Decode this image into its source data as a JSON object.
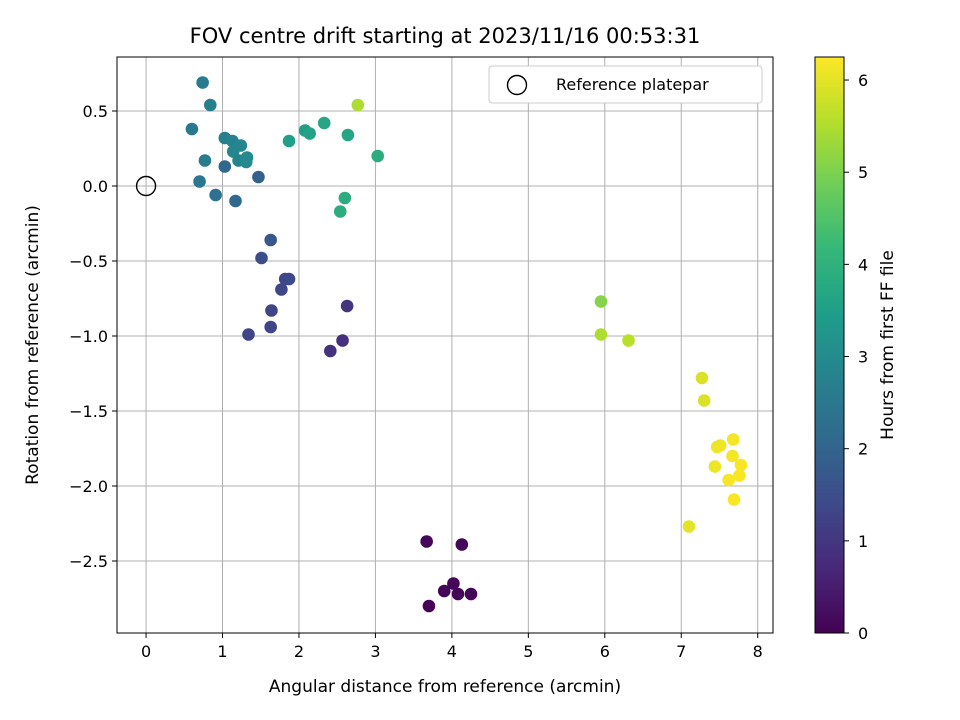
{
  "chart_data": {
    "type": "scatter",
    "title": "FOV centre drift starting at 2023/11/16 00:53:31",
    "xlabel": "Angular distance from reference (arcmin)",
    "ylabel": "Rotation from reference (arcmin)",
    "xlim": [
      -0.38,
      8.2
    ],
    "ylim": [
      -2.98,
      0.86
    ],
    "xticks": [
      0,
      1,
      2,
      3,
      4,
      5,
      6,
      7,
      8
    ],
    "yticks": [
      0.5,
      0.0,
      -0.5,
      -1.0,
      -1.5,
      -2.0,
      -2.5
    ],
    "ytick_labels": [
      "0.5",
      "0.0",
      "−0.5",
      "−1.0",
      "−1.5",
      "−2.0",
      "−2.5"
    ],
    "grid": true,
    "legend": {
      "placement": "top-right",
      "entries": [
        "Reference platepar"
      ]
    },
    "reference_point": {
      "x": 0,
      "y": 0,
      "marker": "hollow-circle"
    },
    "colorbar": {
      "label": "Hours from first FF file",
      "min": 0,
      "max": 6.25,
      "ticks": [
        0,
        1,
        2,
        3,
        4,
        5,
        6
      ],
      "colormap": "viridis"
    },
    "points": [
      {
        "x": 3.67,
        "y": -2.37,
        "c": 0.1
      },
      {
        "x": 3.7,
        "y": -2.8,
        "c": 0.05
      },
      {
        "x": 3.9,
        "y": -2.7,
        "c": 0.05
      },
      {
        "x": 4.02,
        "y": -2.65,
        "c": 0.1
      },
      {
        "x": 4.08,
        "y": -2.72,
        "c": 0.05
      },
      {
        "x": 4.13,
        "y": -2.39,
        "c": 0.1
      },
      {
        "x": 4.25,
        "y": -2.72,
        "c": 0.05
      },
      {
        "x": 2.41,
        "y": -1.1,
        "c": 0.9
      },
      {
        "x": 2.57,
        "y": -1.03,
        "c": 0.85
      },
      {
        "x": 2.63,
        "y": -0.8,
        "c": 0.95
      },
      {
        "x": 1.34,
        "y": -0.99,
        "c": 1.3
      },
      {
        "x": 1.63,
        "y": -0.94,
        "c": 1.3
      },
      {
        "x": 1.64,
        "y": -0.83,
        "c": 1.3
      },
      {
        "x": 1.77,
        "y": -0.69,
        "c": 1.35
      },
      {
        "x": 1.82,
        "y": -0.62,
        "c": 1.35
      },
      {
        "x": 1.87,
        "y": -0.62,
        "c": 1.4
      },
      {
        "x": 1.51,
        "y": -0.48,
        "c": 1.5
      },
      {
        "x": 1.63,
        "y": -0.36,
        "c": 1.7
      },
      {
        "x": 1.47,
        "y": 0.06,
        "c": 1.9
      },
      {
        "x": 1.17,
        "y": -0.1,
        "c": 2.1
      },
      {
        "x": 1.03,
        "y": 0.13,
        "c": 2.1
      },
      {
        "x": 0.91,
        "y": -0.06,
        "c": 2.3
      },
      {
        "x": 0.7,
        "y": 0.03,
        "c": 2.5
      },
      {
        "x": 0.77,
        "y": 0.17,
        "c": 2.6
      },
      {
        "x": 0.6,
        "y": 0.38,
        "c": 2.5
      },
      {
        "x": 0.74,
        "y": 0.69,
        "c": 2.6
      },
      {
        "x": 0.84,
        "y": 0.54,
        "c": 2.7
      },
      {
        "x": 1.03,
        "y": 0.32,
        "c": 2.7
      },
      {
        "x": 1.13,
        "y": 0.3,
        "c": 2.8
      },
      {
        "x": 1.14,
        "y": 0.23,
        "c": 2.9
      },
      {
        "x": 1.21,
        "y": 0.17,
        "c": 2.8
      },
      {
        "x": 1.24,
        "y": 0.27,
        "c": 2.9
      },
      {
        "x": 1.32,
        "y": 0.19,
        "c": 3.0
      },
      {
        "x": 1.31,
        "y": 0.16,
        "c": 3.0
      },
      {
        "x": 1.87,
        "y": 0.3,
        "c": 3.5
      },
      {
        "x": 2.08,
        "y": 0.37,
        "c": 3.5
      },
      {
        "x": 2.14,
        "y": 0.35,
        "c": 3.6
      },
      {
        "x": 2.33,
        "y": 0.42,
        "c": 3.7
      },
      {
        "x": 2.64,
        "y": 0.34,
        "c": 3.7
      },
      {
        "x": 3.03,
        "y": 0.2,
        "c": 3.9
      },
      {
        "x": 2.6,
        "y": -0.08,
        "c": 3.9
      },
      {
        "x": 2.54,
        "y": -0.17,
        "c": 3.9
      },
      {
        "x": 2.77,
        "y": 0.54,
        "c": 5.5
      },
      {
        "x": 5.95,
        "y": -0.77,
        "c": 5.1
      },
      {
        "x": 5.95,
        "y": -0.99,
        "c": 5.5
      },
      {
        "x": 6.31,
        "y": -1.03,
        "c": 5.6
      },
      {
        "x": 7.27,
        "y": -1.28,
        "c": 5.9
      },
      {
        "x": 7.3,
        "y": -1.43,
        "c": 5.9
      },
      {
        "x": 7.47,
        "y": -1.74,
        "c": 6.1
      },
      {
        "x": 7.51,
        "y": -1.73,
        "c": 6.1
      },
      {
        "x": 7.68,
        "y": -1.69,
        "c": 6.15
      },
      {
        "x": 7.67,
        "y": -1.8,
        "c": 6.15
      },
      {
        "x": 7.78,
        "y": -1.86,
        "c": 6.2
      },
      {
        "x": 7.44,
        "y": -1.87,
        "c": 6.1
      },
      {
        "x": 7.76,
        "y": -1.93,
        "c": 6.2
      },
      {
        "x": 7.62,
        "y": -1.96,
        "c": 6.2
      },
      {
        "x": 7.69,
        "y": -2.09,
        "c": 6.2
      },
      {
        "x": 7.1,
        "y": -2.27,
        "c": 6.0
      }
    ]
  }
}
